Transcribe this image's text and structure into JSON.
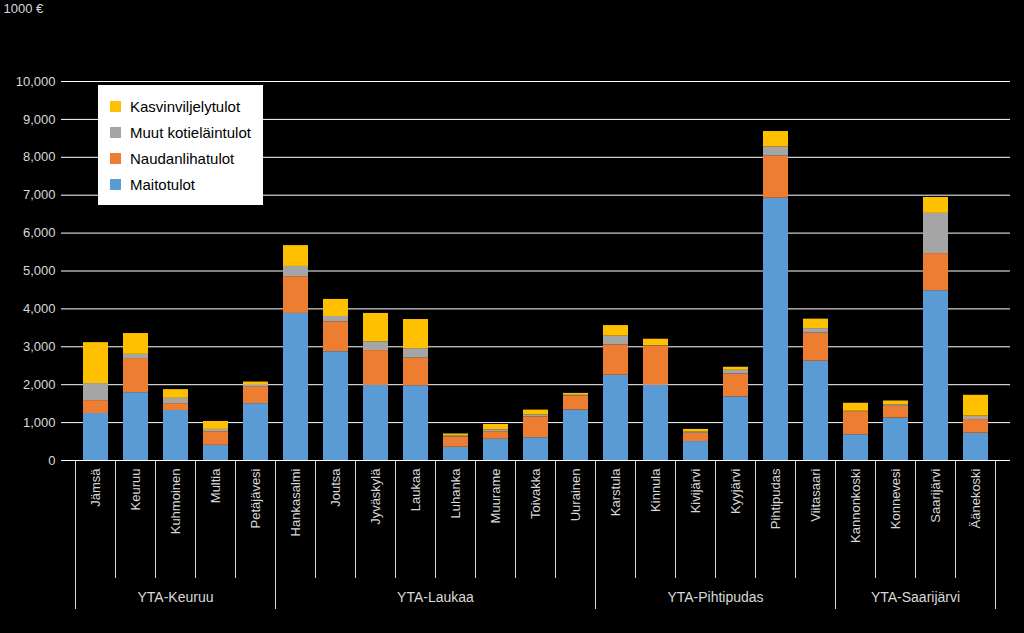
{
  "chart_data": {
    "type": "bar",
    "stacked": true,
    "ylabel": "1000 €",
    "categories": [
      "Jämsä",
      "Keuruu",
      "Kuhmoinen",
      "Multia",
      "Petäjävesi",
      "Hankasalmi",
      "Joutsa",
      "Jyväskylä",
      "Laukaa",
      "Luhanka",
      "Muurame",
      "Toivakka",
      "Uurainen",
      "Karstula",
      "Kinnula",
      "Kivijärvi",
      "Kyyjärvi",
      "Pihtipudas",
      "Viitasaari",
      "Kannonkoski",
      "Konnevesi",
      "Saarijärvi",
      "Äänekoski"
    ],
    "groups": [
      "YTA-Keuruu",
      "YTA-Keuruu",
      "YTA-Keuruu",
      "YTA-Keuruu",
      "YTA-Keuruu",
      "YTA-Laukaa",
      "YTA-Laukaa",
      "YTA-Laukaa",
      "YTA-Laukaa",
      "YTA-Laukaa",
      "YTA-Laukaa",
      "YTA-Laukaa",
      "YTA-Laukaa",
      "YTA-Pihtipudas",
      "YTA-Pihtipudas",
      "YTA-Pihtipudas",
      "YTA-Pihtipudas",
      "YTA-Pihtipudas",
      "YTA-Pihtipudas",
      "YTA-Saarijärvi",
      "YTA-Saarijärvi",
      "YTA-Saarijärvi",
      "YTA-Saarijärvi"
    ],
    "series": [
      {
        "name": "Maitotulot",
        "color": "#5B9BD5",
        "values": [
          1240,
          1790,
          1320,
          400,
          1500,
          3880,
          2870,
          1980,
          1970,
          350,
          560,
          600,
          1330,
          2250,
          1990,
          500,
          1680,
          6920,
          2620,
          680,
          1120,
          4480,
          720
        ]
      },
      {
        "name": "Naudanlihatulot",
        "color": "#ED7D31",
        "values": [
          340,
          900,
          180,
          360,
          450,
          970,
          790,
          920,
          730,
          270,
          200,
          550,
          370,
          800,
          1030,
          220,
          600,
          1110,
          740,
          610,
          310,
          980,
          360
        ]
      },
      {
        "name": "Muut kotieläintulot",
        "color": "#A5A5A5",
        "values": [
          450,
          110,
          140,
          60,
          50,
          270,
          140,
          230,
          250,
          30,
          50,
          50,
          20,
          230,
          10,
          30,
          100,
          240,
          120,
          10,
          40,
          1060,
          90
        ]
      },
      {
        "name": "Kasvinviljelytulot",
        "color": "#FFC000",
        "values": [
          1080,
          550,
          230,
          210,
          70,
          550,
          450,
          750,
          770,
          50,
          140,
          130,
          50,
          280,
          170,
          70,
          80,
          410,
          250,
          210,
          100,
          420,
          550
        ]
      }
    ],
    "ylim": [
      0,
      10000
    ],
    "yticks": [
      0,
      1000,
      2000,
      3000,
      4000,
      5000,
      6000,
      7000,
      8000,
      9000,
      10000
    ],
    "grid": true,
    "legend": "top-left"
  }
}
